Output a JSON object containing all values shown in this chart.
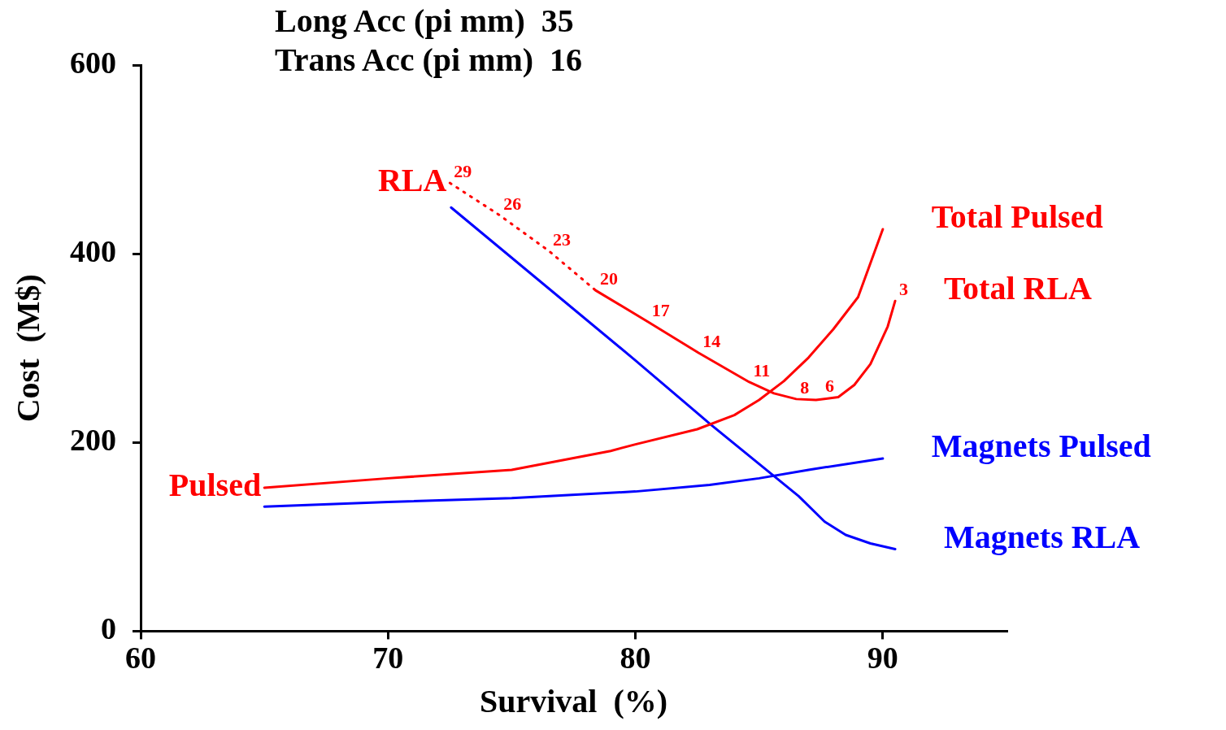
{
  "chart_data": {
    "type": "line",
    "title": "Long Acc (pi mm)  35",
    "subtitle": "Trans Acc (pi mm)  16",
    "xlabel": "Survival  (%)",
    "ylabel": "Cost  (M$)",
    "xlim": [
      60,
      95
    ],
    "xticks": [
      60,
      70,
      80,
      90
    ],
    "ylim": [
      0,
      600
    ],
    "yticks": [
      0,
      200,
      400,
      600
    ],
    "grid": false,
    "legend": false,
    "marker": "none",
    "line_style": "solid",
    "series": [
      {
        "name": "Total Pulsed",
        "color": "#ff0000",
        "x": [
          65,
          70,
          75,
          79,
          80,
          82.5,
          84,
          85,
          86,
          87,
          88,
          89,
          90
        ],
        "values": [
          152,
          162,
          171,
          191,
          198,
          214,
          229,
          245,
          265,
          290,
          320,
          354,
          426
        ]
      },
      {
        "name": "Total RLA",
        "color": "#ff0000",
        "x": [
          78.4,
          80.5,
          82.55,
          84.6,
          85.6,
          86.5,
          87.3,
          88.2,
          88.85,
          89.5,
          90.2,
          90.5
        ],
        "values": [
          361,
          328,
          295,
          264,
          252,
          246,
          245,
          248,
          261,
          283,
          323,
          350
        ]
      },
      {
        "color": "#ff0000",
        "line_style": "dotted",
        "x": [
          72.5,
          74.5,
          76.5,
          78.4
        ],
        "values": [
          475,
          441,
          403,
          361
        ]
      },
      {
        "name": "Magnets Pulsed",
        "color": "#0000ff",
        "x": [
          65,
          70,
          75,
          80,
          83,
          85,
          87,
          90
        ],
        "values": [
          132,
          137,
          141,
          148,
          155,
          162,
          171,
          183
        ]
      },
      {
        "name": "Magnets RLA",
        "color": "#0000ff",
        "x": [
          72.55,
          80,
          83,
          86.6,
          87.65,
          88.5,
          89.5,
          90.5
        ],
        "values": [
          449,
          287,
          220,
          143,
          116,
          102,
          93,
          87
        ]
      }
    ],
    "annotations": [
      {
        "text": "29",
        "x": 72.5,
        "y": 475
      },
      {
        "text": "26",
        "x": 74.5,
        "y": 441
      },
      {
        "text": "23",
        "x": 76.5,
        "y": 403
      },
      {
        "text": "20",
        "x": 78.4,
        "y": 361
      },
      {
        "text": "17",
        "x": 80.5,
        "y": 328
      },
      {
        "text": "14",
        "x": 82.55,
        "y": 295
      },
      {
        "text": "11",
        "x": 84.6,
        "y": 264
      },
      {
        "text": "8",
        "x": 86.5,
        "y": 246
      },
      {
        "text": "6",
        "x": 88.2,
        "y": 248
      },
      {
        "text": "3",
        "x": 90.5,
        "y": 350
      },
      {
        "text": "RLA",
        "x": 72.5,
        "y": 475
      },
      {
        "text": "Pulsed",
        "x": 65,
        "y": 152
      }
    ]
  }
}
